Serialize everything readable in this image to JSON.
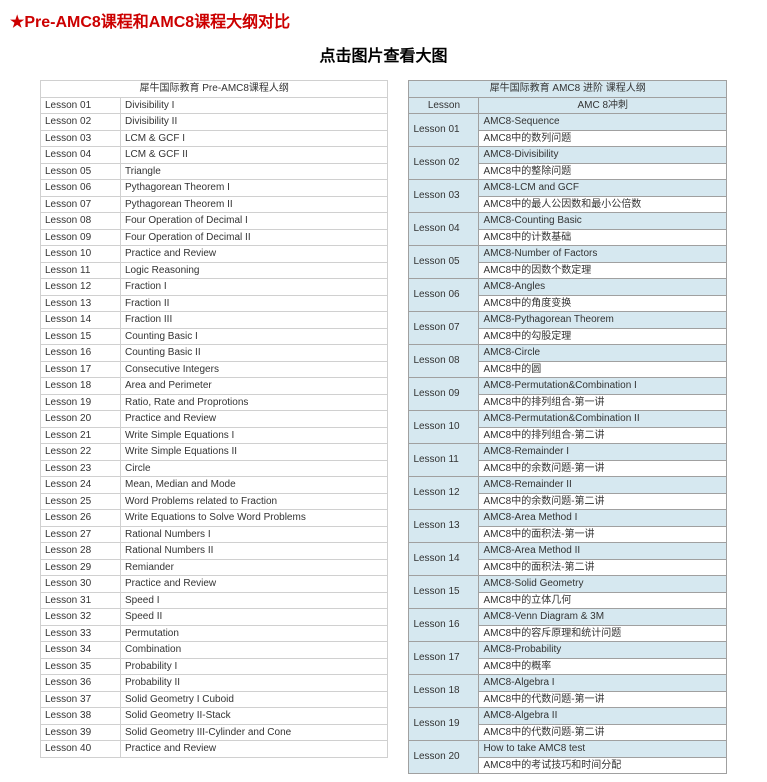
{
  "header": {
    "star": "★",
    "title": "Pre-AMC8课程和AMC8课程大纲对比",
    "subtitle": "点击图片查看大图"
  },
  "leftTable": {
    "title": "犀牛国际教育 Pre-AMC8课程人纲",
    "rows": [
      {
        "lesson": "Lesson 01",
        "topic": "Divisibility I"
      },
      {
        "lesson": "Lesson 02",
        "topic": "Divisibility II"
      },
      {
        "lesson": "Lesson 03",
        "topic": "LCM & GCF I"
      },
      {
        "lesson": "Lesson 04",
        "topic": "LCM & GCF II"
      },
      {
        "lesson": "Lesson 05",
        "topic": "Triangle"
      },
      {
        "lesson": "Lesson 06",
        "topic": "Pythagorean Theorem I"
      },
      {
        "lesson": "Lesson 07",
        "topic": "Pythagorean Theorem II"
      },
      {
        "lesson": "Lesson 08",
        "topic": "Four Operation of Decimal I"
      },
      {
        "lesson": "Lesson 09",
        "topic": "Four Operation of Decimal II"
      },
      {
        "lesson": "Lesson 10",
        "topic": "Practice and Review"
      },
      {
        "lesson": "Lesson 11",
        "topic": "Logic Reasoning"
      },
      {
        "lesson": "Lesson 12",
        "topic": "Fraction I"
      },
      {
        "lesson": "Lesson 13",
        "topic": "Fraction II"
      },
      {
        "lesson": "Lesson 14",
        "topic": "Fraction III"
      },
      {
        "lesson": "Lesson 15",
        "topic": "Counting Basic I"
      },
      {
        "lesson": "Lesson 16",
        "topic": "Counting Basic II"
      },
      {
        "lesson": "Lesson 17",
        "topic": "Consecutive Integers"
      },
      {
        "lesson": "Lesson 18",
        "topic": "Area and Perimeter"
      },
      {
        "lesson": "Lesson 19",
        "topic": "Ratio, Rate and Proprotions"
      },
      {
        "lesson": "Lesson 20",
        "topic": "Practice and Review"
      },
      {
        "lesson": "Lesson 21",
        "topic": "Write Simple Equations I"
      },
      {
        "lesson": "Lesson 22",
        "topic": "Write Simple Equations II"
      },
      {
        "lesson": "Lesson 23",
        "topic": "Circle"
      },
      {
        "lesson": "Lesson 24",
        "topic": "Mean, Median and Mode"
      },
      {
        "lesson": "Lesson 25",
        "topic": "Word Problems related to Fraction"
      },
      {
        "lesson": "Lesson 26",
        "topic": "Write Equations to Solve Word Problems"
      },
      {
        "lesson": "Lesson 27",
        "topic": "Rational Numbers I"
      },
      {
        "lesson": "Lesson 28",
        "topic": "Rational Numbers II"
      },
      {
        "lesson": "Lesson 29",
        "topic": "Remiander"
      },
      {
        "lesson": "Lesson 30",
        "topic": "Practice and Review"
      },
      {
        "lesson": "Lesson 31",
        "topic": "Speed I"
      },
      {
        "lesson": "Lesson 32",
        "topic": "Speed II"
      },
      {
        "lesson": "Lesson 33",
        "topic": "Permutation"
      },
      {
        "lesson": "Lesson 34",
        "topic": "Combination"
      },
      {
        "lesson": "Lesson 35",
        "topic": "Probability I"
      },
      {
        "lesson": "Lesson 36",
        "topic": "Probability II"
      },
      {
        "lesson": "Lesson 37",
        "topic": "Solid Geometry I  Cuboid"
      },
      {
        "lesson": "Lesson 38",
        "topic": "Solid Geometry II-Stack"
      },
      {
        "lesson": "Lesson 39",
        "topic": "Solid Geometry III-Cylinder and Cone"
      },
      {
        "lesson": "Lesson 40",
        "topic": "Practice and Review"
      }
    ]
  },
  "rightTable": {
    "title": "犀牛国际教育 AMC8 进阶 课程人纲",
    "col1": "Lesson",
    "col2": "AMC 8冲刺",
    "rows": [
      {
        "lesson": "Lesson 01",
        "en": "AMC8-Sequence",
        "cn": "AMC8中的数列问题"
      },
      {
        "lesson": "Lesson 02",
        "en": "AMC8-Divisibility",
        "cn": "AMC8中的整除问题"
      },
      {
        "lesson": "Lesson 03",
        "en": "AMC8-LCM and GCF",
        "cn": "AMC8中的最人公因数和最小公倍数"
      },
      {
        "lesson": "Lesson 04",
        "en": "AMC8-Counting Basic",
        "cn": "AMC8中的计数基础"
      },
      {
        "lesson": "Lesson 05",
        "en": "AMC8-Number of Factors",
        "cn": "AMC8中的因数个数定理"
      },
      {
        "lesson": "Lesson 06",
        "en": "AMC8-Angles",
        "cn": "AMC8中的角度变换"
      },
      {
        "lesson": "Lesson 07",
        "en": "AMC8-Pythagorean Theorem",
        "cn": "AMC8中的勾股定理"
      },
      {
        "lesson": "Lesson 08",
        "en": "AMC8-Circle",
        "cn": "AMC8中的圆"
      },
      {
        "lesson": "Lesson 09",
        "en": "AMC8-Permutation&Combination I",
        "cn": "AMC8中的排列组合-第一讲"
      },
      {
        "lesson": "Lesson 10",
        "en": "AMC8-Permutation&Combination II",
        "cn": "AMC8中的排列组合-第二讲"
      },
      {
        "lesson": "Lesson 11",
        "en": "AMC8-Remainder I",
        "cn": "AMC8中的余数问题-第一讲"
      },
      {
        "lesson": "Lesson 12",
        "en": "AMC8-Remainder II",
        "cn": "AMC8中的余数问题-第二讲"
      },
      {
        "lesson": "Lesson 13",
        "en": "AMC8-Area Method I",
        "cn": "AMC8中的面积法-第一讲"
      },
      {
        "lesson": "Lesson 14",
        "en": "AMC8-Area Method II",
        "cn": "AMC8中的面积法-第二讲"
      },
      {
        "lesson": "Lesson 15",
        "en": "AMC8-Solid Geometry",
        "cn": "AMC8中的立体几何"
      },
      {
        "lesson": "Lesson 16",
        "en": "AMC8-Venn Diagram & 3M",
        "cn": "AMC8中的容斥原理和统计问题"
      },
      {
        "lesson": "Lesson 17",
        "en": "AMC8-Probability",
        "cn": "AMC8中的概率"
      },
      {
        "lesson": "Lesson 18",
        "en": "AMC8-Algebra I",
        "cn": "AMC8中的代数问题-第一讲"
      },
      {
        "lesson": "Lesson 19",
        "en": "AMC8-Algebra II",
        "cn": "AMC8中的代数问题-第二讲"
      },
      {
        "lesson": "Lesson 20",
        "en": "How to take AMC8 test",
        "cn": "AMC8中的考试技巧和时间分配"
      }
    ]
  },
  "style": {
    "accent_color": "#cc0000",
    "right_header_bg": "#d6e8f0",
    "border_left": "#d0d0d0",
    "border_right": "#a0a0a0",
    "font_size_body": 10,
    "font_size_header": 16
  }
}
